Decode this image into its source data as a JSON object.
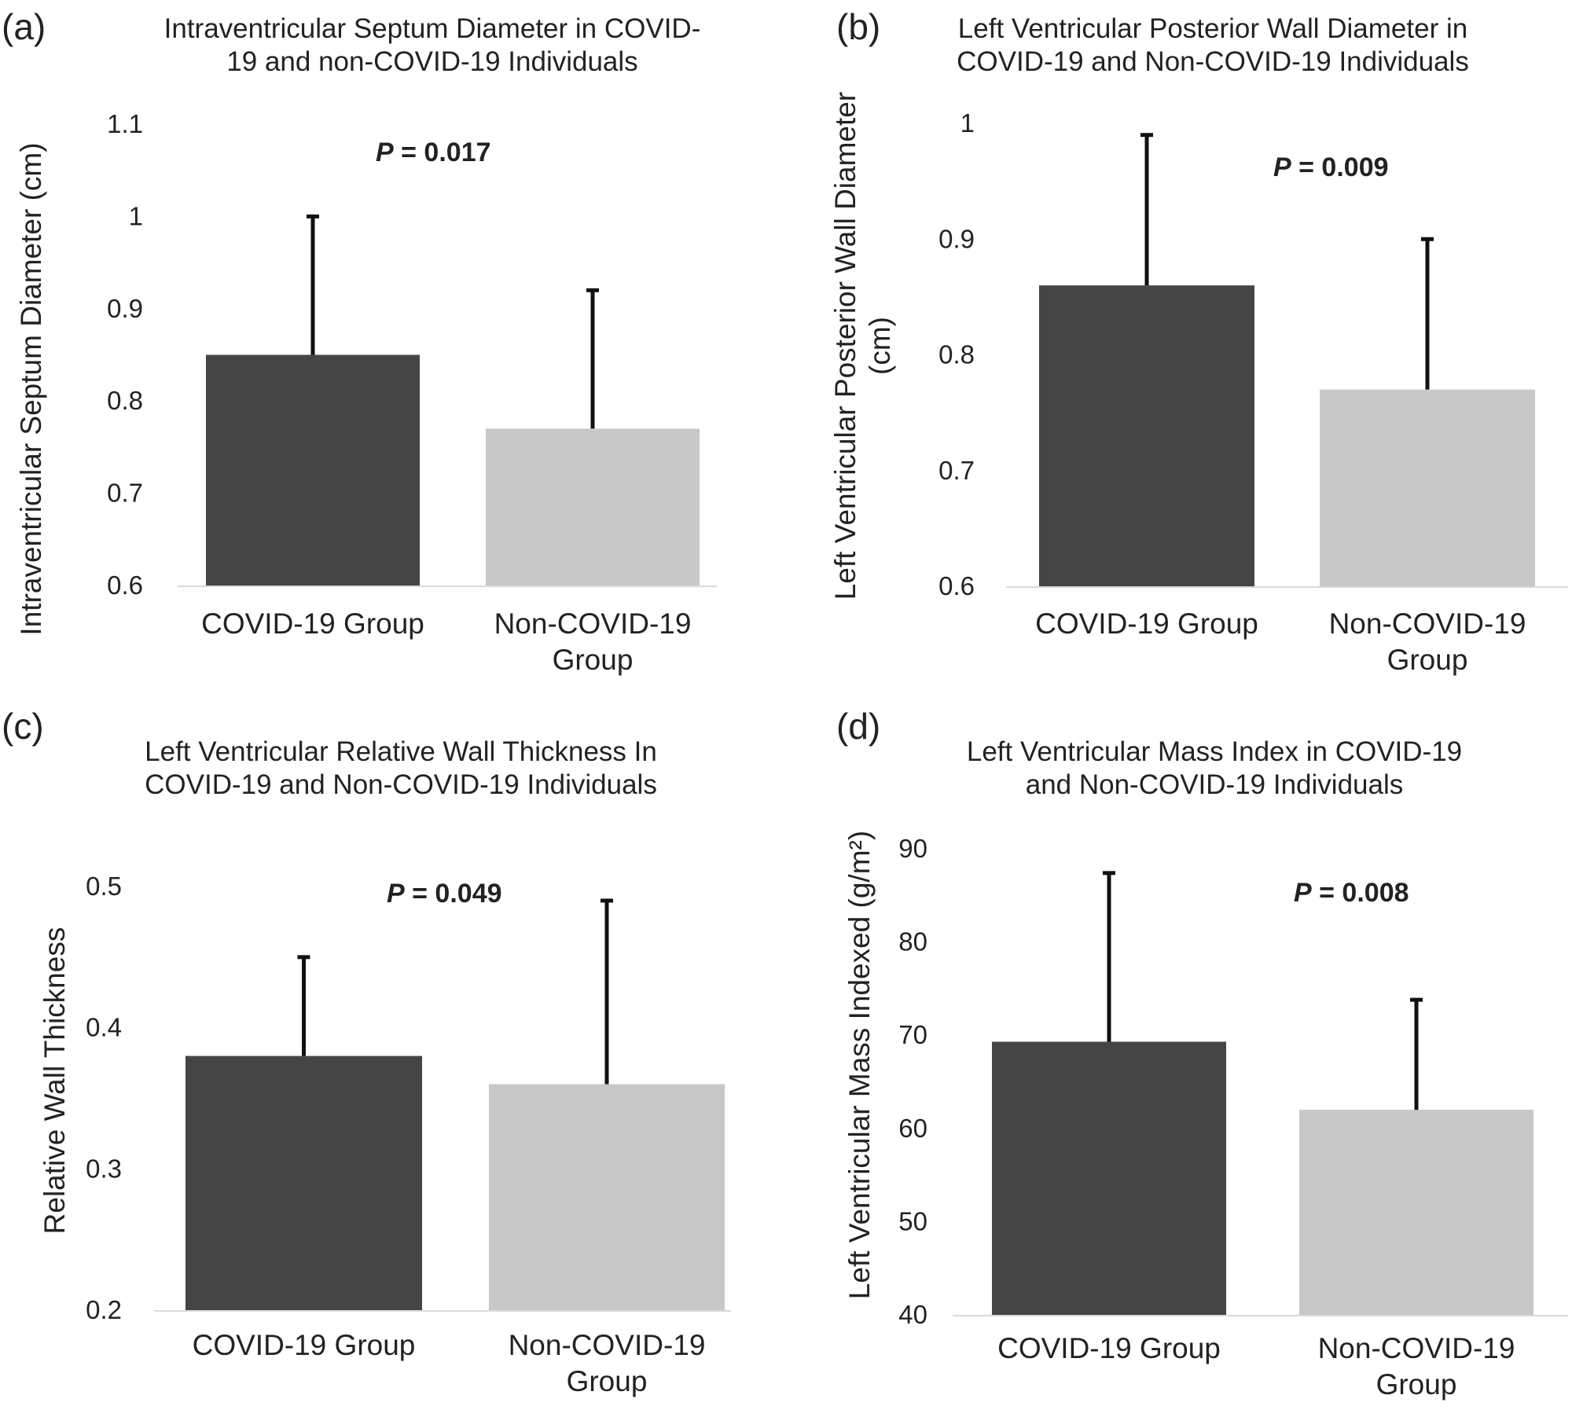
{
  "figure": {
    "bar_colors": [
      "#454545",
      "#c8c8c8"
    ],
    "errorbar_color": "#111111",
    "axis_line_color": "#d9d9d9"
  },
  "chart_data": [
    {
      "type": "bar",
      "panel_label": "(a)",
      "title_lines": [
        "Intraventricular Septum Diameter in COVID-",
        "19 and non-COVID-19 Individuals"
      ],
      "ylabel_lines": [
        "Intraventricular Septum Diameter (cm)"
      ],
      "categories": [
        [
          "COVID-19 Group"
        ],
        [
          "Non-COVID-19",
          "Group"
        ]
      ],
      "values": [
        0.85,
        0.77
      ],
      "errors": [
        0.15,
        0.15
      ],
      "ylim": [
        0.6,
        1.1
      ],
      "yticks": [
        0.6,
        0.7,
        0.8,
        0.9,
        1,
        1.1
      ],
      "ytick_labels": [
        "0.6",
        "0.7",
        "0.8",
        "0.9",
        "1",
        "1.1"
      ],
      "annotation": {
        "prefix": "P",
        "text": " = 0.017"
      },
      "grid": false
    },
    {
      "type": "bar",
      "panel_label": "(b)",
      "title_lines": [
        "Left Ventricular Posterior Wall Diameter in",
        "COVID-19 and Non-COVID-19 Individuals"
      ],
      "ylabel_lines": [
        "Left Ventricular Posterior Wall Diameter",
        "(cm)"
      ],
      "categories": [
        [
          "COVID-19 Group"
        ],
        [
          "Non-COVID-19",
          "Group"
        ]
      ],
      "values": [
        0.86,
        0.77
      ],
      "errors": [
        0.13,
        0.13
      ],
      "ylim": [
        0.6,
        1.0
      ],
      "yticks": [
        0.6,
        0.7,
        0.8,
        0.9,
        1
      ],
      "ytick_labels": [
        "0.6",
        "0.7",
        "0.8",
        "0.9",
        "1"
      ],
      "annotation": {
        "prefix": "P",
        "text": " = 0.009"
      },
      "grid": false
    },
    {
      "type": "bar",
      "panel_label": "(c)",
      "title_lines": [
        "Left Ventricular Relative Wall Thickness In",
        "COVID-19 and Non-COVID-19 Individuals"
      ],
      "ylabel_lines": [
        "Relative Wall Thickness"
      ],
      "categories": [
        [
          "COVID-19 Group"
        ],
        [
          "Non-COVID-19",
          "Group"
        ]
      ],
      "values": [
        0.38,
        0.36
      ],
      "errors": [
        0.07,
        0.13
      ],
      "ylim": [
        0.2,
        0.5
      ],
      "yticks": [
        0.2,
        0.3,
        0.4,
        0.5
      ],
      "ytick_labels": [
        "0.2",
        "0.3",
        "0.4",
        "0.5"
      ],
      "annotation": {
        "prefix": "P",
        "text": " = 0.049"
      },
      "grid": false
    },
    {
      "type": "bar",
      "panel_label": "(d)",
      "title_lines": [
        "Left Ventricular Mass Index in COVID-19",
        "and Non-COVID-19 Individuals"
      ],
      "ylabel_lines": [
        "Left Ventricular Mass Indexed (g/m²)"
      ],
      "categories": [
        [
          "COVID-19 Group"
        ],
        [
          "Non-COVID-19",
          "Group"
        ]
      ],
      "values": [
        69.3,
        62.0
      ],
      "errors": [
        18.1,
        11.8
      ],
      "ylim": [
        40,
        90
      ],
      "yticks": [
        40,
        50,
        60,
        70,
        80,
        90
      ],
      "ytick_labels": [
        "40",
        "50",
        "60",
        "70",
        "80",
        "90"
      ],
      "annotation": {
        "prefix": "P",
        "text": " = 0.008"
      },
      "grid": false
    }
  ]
}
